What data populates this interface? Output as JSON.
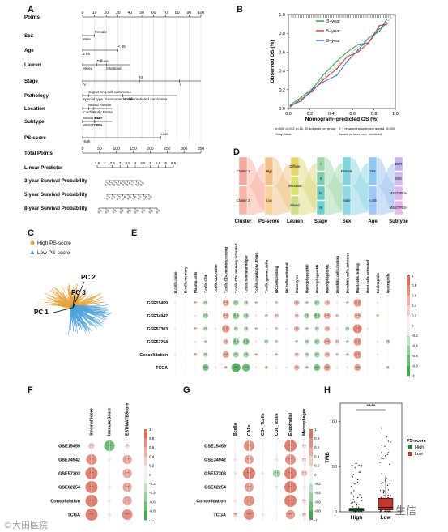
{
  "panel_labels": {
    "a": "A",
    "b": "B",
    "c": "C",
    "d": "D",
    "e": "E",
    "f": "F",
    "g": "G",
    "h": "H"
  },
  "colors": {
    "red": "#d6604d",
    "green": "#2e9e3a",
    "orange": "#e6a23c",
    "blue": "#4fa3dc",
    "purple": "#7b68ee"
  },
  "nomogram": {
    "rows": [
      "Points",
      "Sex",
      "Age",
      "Lauren",
      "Stage",
      "Pathology",
      "Location",
      "Subtype",
      "PS-score",
      "Total Points",
      "Linear Predictor",
      "3-year Survival Probability",
      "5-year Survival Probability",
      "8-year Survival Probability"
    ],
    "points_ticks": [
      "0",
      "10",
      "20",
      "30",
      "40",
      "50",
      "60",
      "70",
      "80",
      "90",
      "100"
    ],
    "total_ticks": [
      "0",
      "50",
      "100",
      "150",
      "200",
      "250",
      "300",
      "350"
    ],
    "lp_ticks": [
      "1.5",
      "2",
      "2.5",
      "3",
      "3.5",
      "4",
      "4.5",
      "5",
      "5.5",
      "6",
      "6.5"
    ],
    "sex_labels": [
      "Female",
      "Male"
    ],
    "age_labels": [
      "< 65",
      "≥ 65"
    ],
    "lauren_labels": [
      "Diffuse",
      "Mixed",
      "Intestinal"
    ],
    "stage_labels": [
      "IV",
      "III",
      "II"
    ],
    "pathology_labels": [
      "Signet ring cell carcinoma",
      "Special type",
      "Undifferentiated carcinoma",
      "Adenocarcinoma"
    ],
    "location_labels": [
      "Mixed Antrum",
      "Cardia",
      "Body Entire"
    ],
    "subtype_labels": [
      "MSS/TP53+",
      "EMT",
      "MSS/TP53−",
      "MSI"
    ],
    "ps_labels": [
      "Low",
      "High"
    ],
    "surv3_ticks": [
      "0.1",
      "0.2",
      "0.3",
      "0.4",
      "0.5",
      "0.6",
      "0.7",
      "0.8",
      "0.9"
    ],
    "surv5_ticks": [
      "0.1",
      "0.2",
      "0.3",
      "0.4",
      "0.5",
      "0.6",
      "0.7",
      "0.8",
      "0.9"
    ],
    "surv8_ticks": [
      "0.1",
      "0.2",
      "0.3",
      "0.4",
      "0.5",
      "0.6",
      "0.7",
      "0.8",
      "0.9"
    ]
  },
  "chart_data": [
    {
      "type": "line",
      "panel": "B",
      "xlabel": "Nomogram−predicted OS (%)",
      "ylabel": "Observed OS (%)",
      "xlim": [
        0,
        1
      ],
      "ylim": [
        0,
        1
      ],
      "x_ticks": [
        "0.0",
        "0.2",
        "0.4",
        "0.6",
        "0.8",
        "1.0"
      ],
      "y_ticks": [
        "0.0",
        "0.2",
        "0.4",
        "0.6",
        "0.8",
        "1.0"
      ],
      "legend": [
        "3−year",
        "5−year",
        "8−year"
      ],
      "series": [
        {
          "name": "3−year",
          "color": "#2e9e3a",
          "x": [
            0.02,
            0.12,
            0.22,
            0.32,
            0.45,
            0.55,
            0.65,
            0.75,
            0.85,
            0.92
          ],
          "y": [
            0.04,
            0.12,
            0.2,
            0.35,
            0.5,
            0.6,
            0.68,
            0.7,
            0.85,
            0.9
          ]
        },
        {
          "name": "5−year",
          "color": "#d6392b",
          "x": [
            0.02,
            0.12,
            0.22,
            0.32,
            0.45,
            0.55,
            0.65,
            0.75,
            0.85,
            0.92
          ],
          "y": [
            0.02,
            0.1,
            0.18,
            0.3,
            0.42,
            0.55,
            0.6,
            0.7,
            0.88,
            0.9
          ]
        },
        {
          "name": "8−year",
          "color": "#3b6fc7",
          "x": [
            0.02,
            0.12,
            0.22,
            0.32,
            0.45,
            0.55,
            0.65,
            0.75,
            0.85,
            0.92
          ],
          "y": [
            0.03,
            0.08,
            0.2,
            0.28,
            0.35,
            0.5,
            0.62,
            0.75,
            0.82,
            0.95
          ]
        }
      ],
      "footnote_left": "n=300 d=152 p=18, 50 subjects per group\nGray: ideal",
      "footnote_right": "X − resampling optimism added, B=300\nBased on observed−predicted"
    },
    {
      "type": "sankey",
      "panel": "D",
      "axes": [
        "Cluster",
        "PS-score",
        "Lauren",
        "Stage",
        "Sex",
        "Age",
        "Subtype"
      ],
      "strata": {
        "Cluster": [
          "Cluster 1",
          "Cluster 2"
        ],
        "PS-score": [
          "High",
          "Low"
        ],
        "Lauren": [
          "Diffuse",
          "Intestinal",
          "Mixed"
        ],
        "Stage": [
          "I",
          "II",
          "III",
          "IV"
        ],
        "Sex": [
          "Female",
          "male"
        ],
        "Age": [
          ">65",
          "<=65"
        ],
        "Subtype": [
          "EMT",
          "MSI",
          "MSS/TP53−",
          "MSS/TP53+"
        ]
      }
    },
    {
      "type": "scatter",
      "panel": "C",
      "legend": [
        "High PS-score",
        "Low PS-score"
      ],
      "axes": [
        "PC 1",
        "PC 2",
        "PC 3"
      ]
    },
    {
      "type": "heatmap",
      "panel": "E",
      "rows": [
        "GSE15459",
        "GSE34942",
        "GSE57303",
        "GSE62254",
        "Consolidation",
        "TCGA"
      ],
      "cols": [
        "B.cells.naive",
        "B.cells.memory",
        "Plasma.cells",
        "T.cells.CD8",
        "T.cells.CD4.naive",
        "T.cells.CD4.memory.resting",
        "T.cells.CD4.memory.activated",
        "T.cells.follicular.helper",
        "T.cells.regulatory..Tregs.",
        "T.cells.gamma.delta",
        "NK.cells.resting",
        "NK.cells.activated",
        "Monocytes",
        "Macrophages.M0",
        "Macrophages.M1",
        "Macrophages.M2",
        "Dendritic.cells.resting",
        "Dendritic.cells.activated",
        "Mast.cells.resting",
        "Mast.cells.activated",
        "Eosinophils",
        "Neutrophils"
      ],
      "scale": [
        "1",
        "0.8",
        "0.6",
        "0.4",
        "0.2",
        "0",
        "-0.2",
        "-0.4",
        "-0.6",
        "-0.8",
        "-1"
      ],
      "values": [
        [
          0.2,
          0,
          0.3,
          -0.4,
          0.1,
          0.6,
          -0.5,
          -0.4,
          0.3,
          -0.2,
          0.3,
          -0.1,
          0.5,
          -0.3,
          -0.5,
          0.5,
          0.2,
          -0.3,
          0.7,
          0.1,
          0.2,
          0
        ],
        [
          0.1,
          0,
          0.2,
          -0.5,
          0,
          0.6,
          -0.6,
          -0.5,
          0.2,
          -0.3,
          0.4,
          0,
          0.4,
          -0.5,
          -0.6,
          0.6,
          0.3,
          -0.2,
          0.6,
          0,
          0.3,
          -0.1
        ],
        [
          0.2,
          0.1,
          0.3,
          -0.4,
          0.2,
          0.7,
          -0.4,
          -0.4,
          0.3,
          -0.2,
          0.3,
          -0.2,
          0.5,
          -0.3,
          -0.4,
          0.5,
          0.2,
          -0.4,
          0.8,
          0.2,
          0.1,
          0
        ],
        [
          0.1,
          0,
          0.2,
          -0.3,
          0,
          0.5,
          -0.6,
          -0.6,
          0.2,
          -0.4,
          0.3,
          0,
          0.3,
          -0.4,
          -0.5,
          0.6,
          0.4,
          -0.3,
          0.7,
          0,
          0.2,
          -0.4
        ],
        [
          0.2,
          0.1,
          0.3,
          -0.4,
          0.1,
          0.6,
          -0.5,
          -0.5,
          0.3,
          -0.2,
          0.3,
          -0.1,
          0.4,
          -0.4,
          -0.5,
          0.5,
          0.3,
          -0.3,
          0.7,
          0.1,
          0.2,
          -0.1
        ],
        [
          0,
          0.1,
          0.1,
          -0.6,
          0.2,
          0.3,
          -0.8,
          -0.7,
          0.2,
          -0.3,
          0.2,
          -0.2,
          0.5,
          -0.3,
          -0.6,
          0.6,
          0.2,
          -0.2,
          0.6,
          0.1,
          0.1,
          -0.3
        ]
      ]
    },
    {
      "type": "heatmap",
      "panel": "F",
      "rows": [
        "GSE15459",
        "GSE34942",
        "GSE57303",
        "GSE62254",
        "Consolidation",
        "TCGA"
      ],
      "cols": [
        "StromalScore",
        "ImmuneScore",
        "ESTIMATEScore"
      ],
      "scale": [
        "1",
        "0.8",
        "0.6",
        "0.4",
        "0.2",
        "0",
        "-0.2",
        "-0.4",
        "-0.6",
        "-0.8",
        "-1"
      ],
      "values": [
        [
          0.4,
          -0.7,
          0.3
        ],
        [
          0.7,
          0.2,
          0.6
        ],
        [
          0.8,
          0.1,
          0.6
        ],
        [
          0.8,
          0.2,
          0.6
        ],
        [
          0.8,
          0.2,
          0.6
        ],
        [
          0.8,
          0.2,
          0.7
        ]
      ]
    },
    {
      "type": "heatmap",
      "panel": "G",
      "rows": [
        "GSE15459",
        "GSE34942",
        "GSE57303",
        "GSE62254",
        "Consolidation",
        "TCGA"
      ],
      "cols": [
        "Bcells",
        "CAFs",
        "CD4_Tcells",
        "CD8_Tcells",
        "Endothelial",
        "Macrophages"
      ],
      "scale": [
        "1",
        "0.8",
        "0.6",
        "0.4",
        "0.2",
        "0",
        "-0.2",
        "-0.4",
        "-0.6",
        "-0.8",
        "-1"
      ],
      "values": [
        [
          0.1,
          0.7,
          0.1,
          0,
          0.8,
          0.3
        ],
        [
          0.2,
          0.6,
          0.1,
          -0.2,
          0.7,
          0.3
        ],
        [
          0.2,
          0.8,
          0.2,
          -0.5,
          0.8,
          0.4
        ],
        [
          0.1,
          0.6,
          0.1,
          -0.2,
          0.8,
          0.2
        ],
        [
          0.2,
          0.7,
          0.1,
          -0.1,
          0.8,
          0.3
        ],
        [
          0.3,
          0.7,
          0.2,
          0.1,
          0.6,
          0.3
        ]
      ]
    },
    {
      "type": "box",
      "panel": "H",
      "categories": [
        "High",
        "Low"
      ],
      "ylabel": "TMB",
      "y_ticks": [
        "0",
        "50",
        "100"
      ],
      "ylim": [
        0,
        120
      ],
      "significance": "****",
      "legend_title": "PS-score",
      "legend": [
        "High",
        "Low"
      ],
      "series": [
        {
          "name": "High",
          "color": "#2e7d32",
          "median": 2,
          "q1": 1,
          "q3": 4,
          "whisker_high": 10
        },
        {
          "name": "Low",
          "color": "#c0392b",
          "median": 5,
          "q1": 2,
          "q3": 15,
          "whisker_high": 40
        }
      ]
    }
  ],
  "watermark_left": "©大田医院",
  "watermark_right": "生信"
}
